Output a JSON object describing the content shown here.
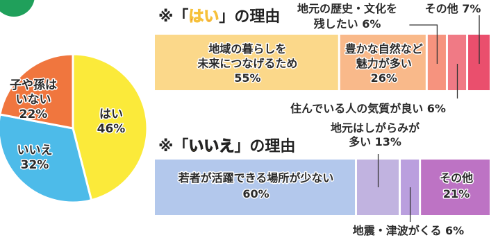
{
  "colors": {
    "pie_yes": "#fbea3a",
    "pie_no": "#4dbbe9",
    "pie_no_kids": "#f0763e",
    "badge": "#20a05b",
    "yes_bar_1": "#fbd88a",
    "yes_bar_2": "#f9b98a",
    "yes_bar_3": "#f6937e",
    "yes_bar_4": "#f07a85",
    "yes_bar_5": "#ea4f6d",
    "no_bar_1": "#b3c8ec",
    "no_bar_2": "#c1b3e0",
    "no_bar_3": "#ba9fde",
    "no_bar_4": "#bd73c4",
    "highlight_yes": "#f1395f",
    "highlight_no": "#f6c13a"
  },
  "chart_data": [
    {
      "type": "pie",
      "slices": [
        {
          "label_lines": [
            "はい",
            "46%"
          ],
          "value": 46,
          "color_key": "pie_yes"
        },
        {
          "label_lines": [
            "いいえ",
            "32%"
          ],
          "value": 32,
          "color_key": "pie_no"
        },
        {
          "label_lines": [
            "子や孫は",
            "いない",
            "22%"
          ],
          "value": 22,
          "color_key": "pie_no_kids"
        }
      ]
    },
    {
      "type": "bar",
      "stacked": true,
      "orientation": "horizontal",
      "title_prefix": "※「",
      "title_highlight": "はい",
      "title_suffix": "」の理由",
      "segments": [
        {
          "label_lines": [
            "地域の暮らしを",
            "未来につなげるため",
            "55%"
          ],
          "value": 55,
          "color_key": "yes_bar_1"
        },
        {
          "label_lines": [
            "豊かな自然など",
            "魅力が多い",
            "26%"
          ],
          "value": 26,
          "color_key": "yes_bar_2"
        },
        {
          "label_lines": [
            "地元の歴史・文化を",
            "残したい 6%"
          ],
          "value": 6,
          "color_key": "yes_bar_3"
        },
        {
          "label_lines": [
            "住んでいる人の気質が良い 6%"
          ],
          "value": 6,
          "color_key": "yes_bar_4"
        },
        {
          "label_lines": [
            "その他 7%"
          ],
          "value": 7,
          "color_key": "yes_bar_5"
        }
      ]
    },
    {
      "type": "bar",
      "stacked": true,
      "orientation": "horizontal",
      "title_prefix": "※「",
      "title_highlight": "いいえ",
      "title_suffix": "」の理由",
      "segments": [
        {
          "label_lines": [
            "若者が活躍できる場所が少ない",
            "60%"
          ],
          "value": 60,
          "color_key": "no_bar_1"
        },
        {
          "label_lines": [
            "地元はしがらみが",
            "多い 13%"
          ],
          "value": 13,
          "color_key": "no_bar_2"
        },
        {
          "label_lines": [
            "地震・津波がくる 6%"
          ],
          "value": 6,
          "color_key": "no_bar_3"
        },
        {
          "label_lines": [
            "その他",
            "21%"
          ],
          "value": 21,
          "color_key": "no_bar_4"
        }
      ]
    }
  ]
}
